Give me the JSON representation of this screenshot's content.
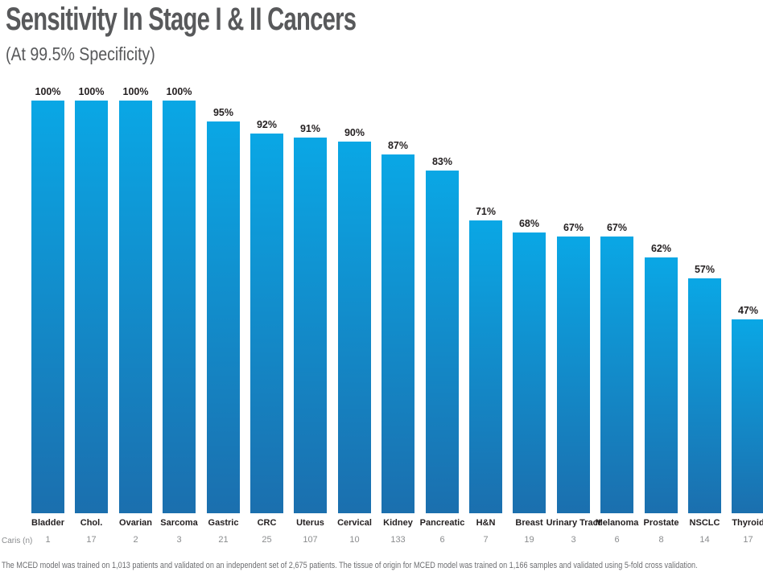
{
  "header": {
    "title": "Sensitivity In Stage I & II Cancers",
    "subtitle": "(At 99.5% Specificity)"
  },
  "caris_row_label": "Caris (n)",
  "footnote": "The MCED model was trained on 1,013 patients and validated on an independent set of 2,675 patients. The tissue of origin for MCED model was trained on 1,166 samples and validated using 5-fold cross validation.",
  "colors": {
    "bar_gradient_top": "#0AA7E5",
    "bar_gradient_bottom": "#1B6FAE",
    "title_text": "#58595B",
    "value_label_text": "#231F20",
    "n_value_text": "#8A8C8E",
    "footnote_text": "#6D6E71",
    "background": "#FFFFFF"
  },
  "chart_data": {
    "type": "bar",
    "title": "Sensitivity In Stage I & II Cancers",
    "subtitle": "(At 99.5% Specificity)",
    "categories": [
      "Bladder",
      "Chol.",
      "Ovarian",
      "Sarcoma",
      "Gastric",
      "CRC",
      "Uterus",
      "Cervical",
      "Kidney",
      "Pancreatic",
      "H&N",
      "Breast",
      "Urinary Tract",
      "Melanoma",
      "Prostate",
      "NSCLC",
      "Thyroid"
    ],
    "values": [
      100,
      100,
      100,
      100,
      95,
      92,
      91,
      90,
      87,
      83,
      71,
      68,
      67,
      67,
      62,
      57,
      47
    ],
    "value_labels": [
      "100%",
      "100%",
      "100%",
      "100%",
      "95%",
      "92%",
      "91%",
      "90%",
      "87%",
      "83%",
      "71%",
      "68%",
      "67%",
      "67%",
      "62%",
      "57%",
      "47%"
    ],
    "caris_n": [
      "1",
      "17",
      "2",
      "3",
      "21",
      "25",
      "107",
      "10",
      "133",
      "6",
      "7",
      "19",
      "3",
      "6",
      "8",
      "14",
      "17"
    ],
    "n_row_label": "Caris (n)",
    "xlabel": "",
    "ylabel": "",
    "ylim": [
      0,
      100
    ],
    "grid": false,
    "legend": false,
    "bar_orientation": "vertical",
    "sort_order": "descending"
  }
}
